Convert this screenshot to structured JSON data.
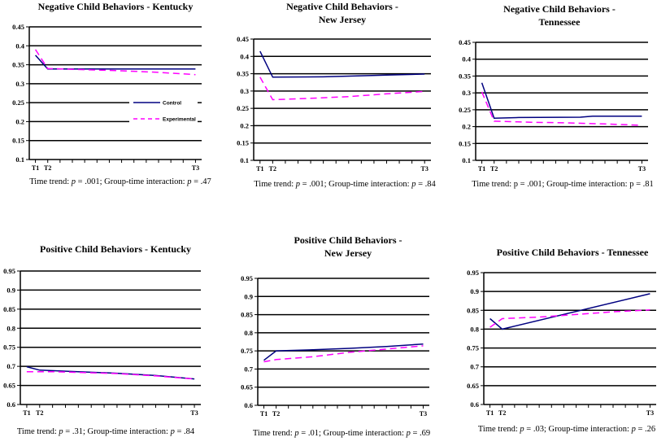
{
  "colors": {
    "control": "#000080",
    "experimental": "#FF00FF",
    "grid": "#000000",
    "background": "#FFFFFF"
  },
  "x_axis": {
    "tick_count": 14,
    "labels": [
      {
        "text": "T1",
        "tick": 0
      },
      {
        "text": "T2",
        "tick": 1
      },
      {
        "text": "T3",
        "tick": 13
      }
    ]
  },
  "legend": {
    "position": "inside-right",
    "entries": [
      {
        "label": "Control",
        "color_key": "control",
        "style": "solid"
      },
      {
        "label": "Experimental",
        "color_key": "experimental",
        "style": "dashed"
      }
    ]
  },
  "chart_data": [
    {
      "id": "neg-ky",
      "type": "line",
      "title_lines": [
        "Negative Child Behaviors - Kentucky"
      ],
      "xlabel": "",
      "ylabel": "",
      "ylim": [
        0.1,
        0.45
      ],
      "ystep": 0.05,
      "y_labels": [
        "0.45",
        "0.4",
        "0.35",
        "0.3",
        "0.25",
        "0.2",
        "0.15",
        "0.1"
      ],
      "grid": true,
      "show_legend": true,
      "series": [
        {
          "name": "Control",
          "color_key": "control",
          "style": "solid",
          "points": [
            [
              0,
              0.375
            ],
            [
              1,
              0.339
            ],
            [
              7,
              0.339
            ],
            [
              13,
              0.339
            ]
          ]
        },
        {
          "name": "Experimental",
          "color_key": "experimental",
          "style": "dashed",
          "points": [
            [
              0,
              0.39
            ],
            [
              1,
              0.34
            ],
            [
              4,
              0.337
            ],
            [
              7,
              0.334
            ],
            [
              10,
              0.33
            ],
            [
              13,
              0.324
            ]
          ]
        }
      ],
      "caption": {
        "parts": [
          "Time trend: ",
          "p",
          " = .001; Group-time interaction: ",
          "p",
          " = .47"
        ],
        "time_trend_p": ".001",
        "interaction_p": ".47",
        "p_italic": true
      }
    },
    {
      "id": "neg-nj",
      "type": "line",
      "title_lines": [
        "Negative Child Behaviors -",
        "New Jersey"
      ],
      "xlabel": "",
      "ylabel": "",
      "ylim": [
        0.1,
        0.45
      ],
      "ystep": 0.05,
      "y_labels": [
        "0.45",
        "0.4",
        "0.35",
        "0.3",
        "0.25",
        "0.2",
        "0.15",
        "0.1"
      ],
      "grid": true,
      "show_legend": false,
      "series": [
        {
          "name": "Control",
          "color_key": "control",
          "style": "solid",
          "points": [
            [
              0,
              0.415
            ],
            [
              1,
              0.34
            ],
            [
              5,
              0.341
            ],
            [
              8,
              0.344
            ],
            [
              10,
              0.346
            ],
            [
              13,
              0.349
            ]
          ]
        },
        {
          "name": "Experimental",
          "color_key": "experimental",
          "style": "dashed",
          "points": [
            [
              0,
              0.34
            ],
            [
              1,
              0.275
            ],
            [
              4,
              0.279
            ],
            [
              7,
              0.284
            ],
            [
              10,
              0.292
            ],
            [
              13,
              0.299
            ]
          ]
        }
      ],
      "caption": {
        "parts": [
          "Time trend: ",
          "p",
          " = .001; Group-time interaction: ",
          "p",
          " = .84"
        ],
        "time_trend_p": ".001",
        "interaction_p": ".84",
        "p_italic": true
      }
    },
    {
      "id": "neg-tn",
      "type": "line",
      "title_lines": [
        "Negative Child Behaviors -",
        "Tennessee"
      ],
      "xlabel": "",
      "ylabel": "",
      "ylim": [
        0.1,
        0.45
      ],
      "ystep": 0.05,
      "y_labels": [
        "0.45",
        "0.4",
        "0.35",
        "0.3",
        "0.25",
        "0.2",
        "0.15",
        "0.1"
      ],
      "grid": true,
      "show_legend": false,
      "series": [
        {
          "name": "Control",
          "color_key": "control",
          "style": "solid",
          "points": [
            [
              0,
              0.33
            ],
            [
              1,
              0.225
            ],
            [
              3,
              0.227
            ],
            [
              8,
              0.228
            ],
            [
              9,
              0.231
            ],
            [
              13,
              0.231
            ]
          ]
        },
        {
          "name": "Experimental",
          "color_key": "experimental",
          "style": "dashed",
          "points": [
            [
              0,
              0.303
            ],
            [
              1,
              0.216
            ],
            [
              4,
              0.213
            ],
            [
              7,
              0.211
            ],
            [
              10,
              0.208
            ],
            [
              13,
              0.204
            ]
          ]
        }
      ],
      "caption": {
        "parts": [
          "Time trend: ",
          "p",
          " = .001; Group-time interaction: ",
          "p",
          " = .81"
        ],
        "time_trend_p": ".001",
        "interaction_p": ".81",
        "p_italic": false
      }
    },
    {
      "id": "pos-ky",
      "type": "line",
      "title_lines": [
        "Positive Child Behaviors - Kentucky"
      ],
      "xlabel": "",
      "ylabel": "",
      "ylim": [
        0.6,
        0.95
      ],
      "ystep": 0.05,
      "y_labels": [
        "0.95",
        "0.9",
        "0.85",
        "0.8",
        "0.75",
        "0.7",
        "0.65",
        "0.6"
      ],
      "grid": true,
      "show_legend": false,
      "series": [
        {
          "name": "Control",
          "color_key": "control",
          "style": "solid",
          "points": [
            [
              0,
              0.699
            ],
            [
              1,
              0.69
            ],
            [
              4,
              0.686
            ],
            [
              7,
              0.682
            ],
            [
              10,
              0.676
            ],
            [
              13,
              0.667
            ]
          ]
        },
        {
          "name": "Experimental",
          "color_key": "experimental",
          "style": "dashed",
          "points": [
            [
              0,
              0.686
            ],
            [
              2,
              0.686
            ],
            [
              4,
              0.684
            ],
            [
              7,
              0.681
            ],
            [
              10,
              0.675
            ],
            [
              13,
              0.667
            ]
          ]
        }
      ],
      "caption": {
        "parts": [
          "Time trend: ",
          "p",
          " = .31; Group-time interaction: ",
          "p",
          " = .84"
        ],
        "time_trend_p": ".31",
        "interaction_p": ".84",
        "p_italic": true
      }
    },
    {
      "id": "pos-nj",
      "type": "line",
      "title_lines": [
        "Positive Child Behaviors -",
        "New Jersey"
      ],
      "xlabel": "",
      "ylabel": "",
      "ylim": [
        0.6,
        0.95
      ],
      "ystep": 0.05,
      "y_labels": [
        "0.95",
        "0.9",
        "0.85",
        "0.8",
        "0.75",
        "0.7",
        "0.65",
        "0.6"
      ],
      "grid": true,
      "show_legend": false,
      "series": [
        {
          "name": "Control",
          "color_key": "control",
          "style": "solid",
          "points": [
            [
              0,
              0.724
            ],
            [
              1,
              0.75
            ],
            [
              4,
              0.753
            ],
            [
              7,
              0.757
            ],
            [
              10,
              0.762
            ],
            [
              13,
              0.769
            ]
          ]
        },
        {
          "name": "Experimental",
          "color_key": "experimental",
          "style": "dashed",
          "points": [
            [
              0,
              0.72
            ],
            [
              1,
              0.726
            ],
            [
              4,
              0.734
            ],
            [
              7,
              0.746
            ],
            [
              10,
              0.755
            ],
            [
              13,
              0.764
            ]
          ]
        }
      ],
      "caption": {
        "parts": [
          "Time trend: ",
          "p",
          " = .01; Group-time interaction: ",
          "p",
          " = .69"
        ],
        "time_trend_p": ".01",
        "interaction_p": ".69",
        "p_italic": true
      }
    },
    {
      "id": "pos-tn",
      "type": "line",
      "title_lines": [
        "Positive Child Behaviors - Tennessee"
      ],
      "xlabel": "",
      "ylabel": "",
      "ylim": [
        0.6,
        0.95
      ],
      "ystep": 0.05,
      "y_labels": [
        "0.95",
        "0.9",
        "0.85",
        "0.8",
        "0.75",
        "0.7",
        "0.65",
        "0.6"
      ],
      "grid": true,
      "show_legend": false,
      "series": [
        {
          "name": "Control",
          "color_key": "control",
          "style": "solid",
          "points": [
            [
              0,
              0.828
            ],
            [
              1,
              0.8
            ],
            [
              13,
              0.894
            ]
          ]
        },
        {
          "name": "Experimental",
          "color_key": "experimental",
          "style": "dashed",
          "points": [
            [
              0,
              0.805
            ],
            [
              1,
              0.828
            ],
            [
              4,
              0.832
            ],
            [
              7,
              0.839
            ],
            [
              10,
              0.846
            ],
            [
              13,
              0.851
            ]
          ]
        }
      ],
      "caption": {
        "parts": [
          "Time trend: ",
          "p",
          " = .03; Group-time interaction: ",
          "p",
          " = .26"
        ],
        "time_trend_p": ".03",
        "interaction_p": ".26",
        "p_italic": true
      }
    }
  ]
}
